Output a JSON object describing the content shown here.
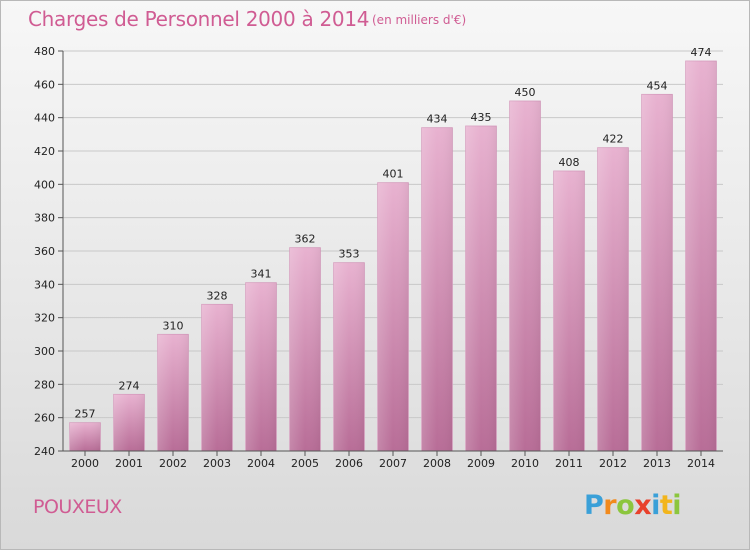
{
  "header": {
    "title": "Charges de Personnel 2000 à 2014",
    "subtitle": "(en milliers d'€)"
  },
  "footer": {
    "location": "POUXEUX",
    "logo_text": "Proxiti",
    "logo_letters": [
      {
        "ch": "P",
        "color": "#3aa0d8"
      },
      {
        "ch": "r",
        "color": "#f28a1c"
      },
      {
        "ch": "o",
        "color": "#8cc63e"
      },
      {
        "ch": "x",
        "color": "#e8412c"
      },
      {
        "ch": "i",
        "color": "#3aa0d8"
      },
      {
        "ch": "t",
        "color": "#f2b51c"
      },
      {
        "ch": "i",
        "color": "#8cc63e"
      }
    ]
  },
  "colors": {
    "accent": "#d05c93",
    "bar_light": "#e8b2d0",
    "bar_dark": "#b86d97"
  },
  "chart_data": {
    "type": "bar",
    "title": "Charges de Personnel 2000 à 2014",
    "subtitle": "(en milliers d'€)",
    "categories": [
      "2000",
      "2001",
      "2002",
      "2003",
      "2004",
      "2005",
      "2006",
      "2007",
      "2008",
      "2009",
      "2010",
      "2011",
      "2012",
      "2013",
      "2014"
    ],
    "values": [
      257,
      274,
      310,
      328,
      341,
      362,
      353,
      401,
      434,
      435,
      450,
      408,
      422,
      454,
      474
    ],
    "ylim": [
      240,
      480
    ],
    "yticks": [
      240,
      260,
      280,
      300,
      320,
      340,
      360,
      380,
      400,
      420,
      440,
      460,
      480
    ],
    "grid": true,
    "legend": "none"
  }
}
